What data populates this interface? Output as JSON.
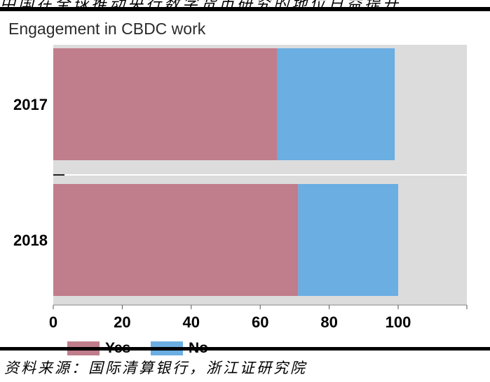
{
  "header": {
    "top_text": "中国在全球推动央行数字货币研究的地位日益提升"
  },
  "chart_data": {
    "type": "bar",
    "orientation": "horizontal",
    "stacked": true,
    "title": "Engagement in CBDC work",
    "categories": [
      "2017",
      "2018"
    ],
    "series": [
      {
        "name": "Yes",
        "color": "#c07d8c",
        "values": [
          65,
          71
        ]
      },
      {
        "name": "No",
        "color": "#6aaee2",
        "values": [
          34,
          29
        ]
      }
    ],
    "xlim": [
      0,
      120
    ],
    "xticks": [
      0,
      20,
      40,
      60,
      80,
      100
    ],
    "xtick_labels": [
      "0",
      "20",
      "40",
      "60",
      "80",
      "100"
    ],
    "grid": true,
    "plot_background": "#dcdcdc",
    "legend": "bottom-left"
  },
  "footer": {
    "source": "资料来源：国际清算银行，浙江证研究院"
  }
}
